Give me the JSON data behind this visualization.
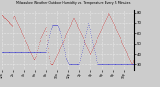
{
  "title": "Milwaukee Weather Outdoor Humidity vs. Temperature Every 5 Minutes",
  "bg_color": "#cccccc",
  "plot_bg_color": "#cccccc",
  "grid_color": "#ffffff",
  "humidity_color": "#cc0000",
  "temp_color": "#0000cc",
  "ylim": [
    25,
    82
  ],
  "yticks": [
    30,
    40,
    50,
    60,
    70,
    80
  ],
  "num_points": 288,
  "humidity": [
    78,
    78,
    77,
    77,
    76,
    76,
    75,
    75,
    75,
    74,
    74,
    73,
    73,
    72,
    72,
    71,
    71,
    70,
    70,
    69,
    69,
    68,
    68,
    67,
    75,
    76,
    77,
    77,
    76,
    75,
    74,
    73,
    72,
    71,
    70,
    69,
    68,
    67,
    66,
    65,
    64,
    63,
    62,
    61,
    60,
    59,
    58,
    57,
    56,
    55,
    54,
    53,
    52,
    51,
    50,
    49,
    48,
    47,
    46,
    45,
    44,
    43,
    42,
    41,
    40,
    39,
    38,
    37,
    36,
    35,
    35,
    35,
    36,
    37,
    38,
    40,
    42,
    44,
    46,
    48,
    50,
    52,
    53,
    54,
    55,
    56,
    57,
    58,
    59,
    60,
    61,
    62,
    63,
    64,
    65,
    66,
    62,
    58,
    54,
    50,
    46,
    42,
    38,
    36,
    33,
    31,
    30,
    30,
    30,
    30,
    30,
    31,
    32,
    33,
    34,
    35,
    36,
    37,
    38,
    39,
    40,
    41,
    42,
    43,
    44,
    45,
    46,
    47,
    48,
    49,
    50,
    51,
    52,
    53,
    54,
    55,
    56,
    57,
    58,
    59,
    60,
    61,
    62,
    63,
    64,
    65,
    66,
    67,
    68,
    69,
    70,
    71,
    72,
    73,
    74,
    75,
    75,
    74,
    73,
    72,
    71,
    70,
    69,
    68,
    67,
    66,
    65,
    64,
    63,
    62,
    61,
    60,
    59,
    58,
    57,
    56,
    55,
    54,
    53,
    52,
    51,
    50,
    49,
    48,
    47,
    46,
    45,
    44,
    43,
    42,
    41,
    40,
    41,
    42,
    43,
    44,
    45,
    46,
    47,
    48,
    49,
    50,
    51,
    52,
    53,
    54,
    55,
    56,
    57,
    58,
    59,
    60,
    61,
    62,
    63,
    64,
    65,
    66,
    67,
    68,
    69,
    70,
    71,
    72,
    73,
    74,
    75,
    76,
    77,
    78,
    79,
    80,
    79,
    78,
    77,
    76,
    75,
    74,
    73,
    72,
    71,
    70,
    69,
    68,
    67,
    66,
    65,
    64,
    63,
    62,
    61,
    60,
    59,
    58,
    57,
    56,
    55,
    54,
    53,
    52,
    51,
    50,
    49,
    48,
    47,
    46,
    45,
    44,
    43,
    42,
    41,
    40,
    39,
    38,
    37,
    36,
    35,
    34,
    33,
    32,
    31,
    30,
    31,
    32,
    33,
    34,
    35,
    36
  ],
  "temp": [
    42,
    42,
    42,
    42,
    42,
    42,
    42,
    42,
    42,
    42,
    42,
    42,
    42,
    42,
    42,
    42,
    42,
    42,
    42,
    42,
    42,
    42,
    42,
    42,
    42,
    42,
    42,
    42,
    42,
    42,
    42,
    42,
    42,
    42,
    42,
    42,
    42,
    42,
    42,
    42,
    42,
    42,
    42,
    42,
    42,
    42,
    42,
    42,
    42,
    42,
    42,
    42,
    42,
    42,
    42,
    42,
    42,
    42,
    42,
    42,
    42,
    42,
    42,
    42,
    42,
    42,
    42,
    42,
    42,
    42,
    42,
    42,
    42,
    42,
    42,
    42,
    42,
    42,
    42,
    42,
    42,
    42,
    42,
    42,
    42,
    42,
    42,
    42,
    42,
    42,
    42,
    42,
    42,
    42,
    42,
    42,
    44,
    46,
    48,
    50,
    52,
    54,
    56,
    58,
    60,
    62,
    64,
    65,
    66,
    67,
    68,
    68,
    68,
    68,
    68,
    68,
    68,
    68,
    68,
    68,
    68,
    67,
    66,
    65,
    64,
    63,
    62,
    60,
    58,
    56,
    54,
    52,
    50,
    48,
    46,
    44,
    42,
    40,
    38,
    36,
    35,
    34,
    33,
    32,
    31,
    30,
    30,
    30,
    30,
    30,
    30,
    30,
    30,
    30,
    30,
    30,
    30,
    30,
    30,
    30,
    30,
    30,
    30,
    30,
    30,
    30,
    30,
    30,
    32,
    34,
    36,
    38,
    40,
    42,
    44,
    46,
    48,
    50,
    52,
    54,
    56,
    58,
    60,
    62,
    64,
    66,
    68,
    70,
    68,
    66,
    64,
    62,
    60,
    58,
    56,
    54,
    52,
    50,
    48,
    46,
    44,
    42,
    40,
    38,
    36,
    34,
    32,
    30,
    30,
    30,
    30,
    30,
    30,
    30,
    30,
    30,
    30,
    30,
    30,
    30,
    30,
    30,
    30,
    30,
    30,
    30,
    30,
    30,
    30,
    30,
    30,
    30,
    30,
    30,
    30,
    30,
    30,
    30,
    30,
    30,
    30,
    30,
    30,
    30,
    30,
    30,
    30,
    30,
    30,
    30,
    30,
    30,
    30,
    30,
    30,
    30,
    30,
    30,
    30,
    30,
    30,
    30,
    30,
    30,
    30,
    30,
    30,
    30,
    30,
    30,
    30,
    30,
    30,
    30,
    30,
    30,
    30,
    30,
    30,
    30,
    30,
    30,
    30,
    30,
    30,
    30,
    30,
    30
  ],
  "xtick_positions": [
    0,
    24,
    48,
    72,
    96,
    120,
    144,
    168,
    192,
    216,
    240,
    264
  ],
  "xtick_labels": [
    "12a",
    "2a",
    "4a",
    "6a",
    "8a",
    "10a",
    "12p",
    "2p",
    "4p",
    "6p",
    "8p",
    "10p"
  ]
}
